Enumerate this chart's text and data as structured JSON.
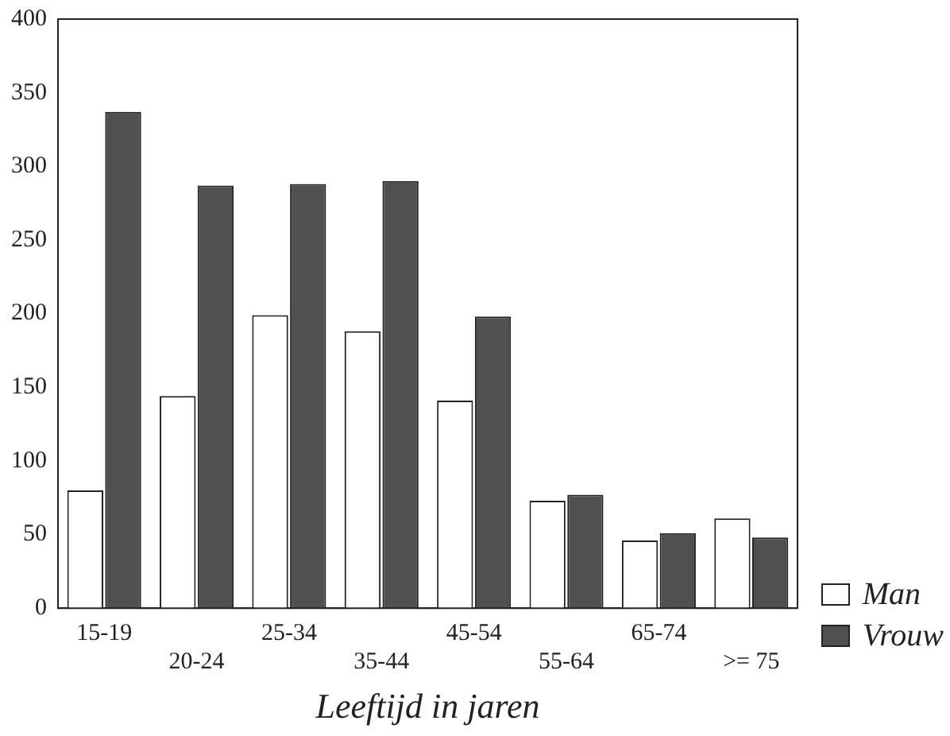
{
  "chart_data": {
    "type": "bar",
    "xlabel": "Leeftijd in jaren",
    "categories": [
      "15-19",
      "20-24",
      "25-34",
      "35-44",
      "45-54",
      "55-64",
      "65-74",
      ">= 75"
    ],
    "series": [
      {
        "name": "Man",
        "color": "#ffffff",
        "values": [
          80,
          144,
          199,
          188,
          141,
          73,
          46,
          61
        ]
      },
      {
        "name": "Vrouw",
        "color": "#505050",
        "values": [
          337,
          287,
          288,
          290,
          198,
          77,
          51,
          48
        ]
      }
    ],
    "ylim": [
      0,
      400
    ],
    "yticks": [
      0,
      50,
      100,
      150,
      200,
      250,
      300,
      350,
      400
    ],
    "grid": false,
    "legend": "bottom right"
  }
}
